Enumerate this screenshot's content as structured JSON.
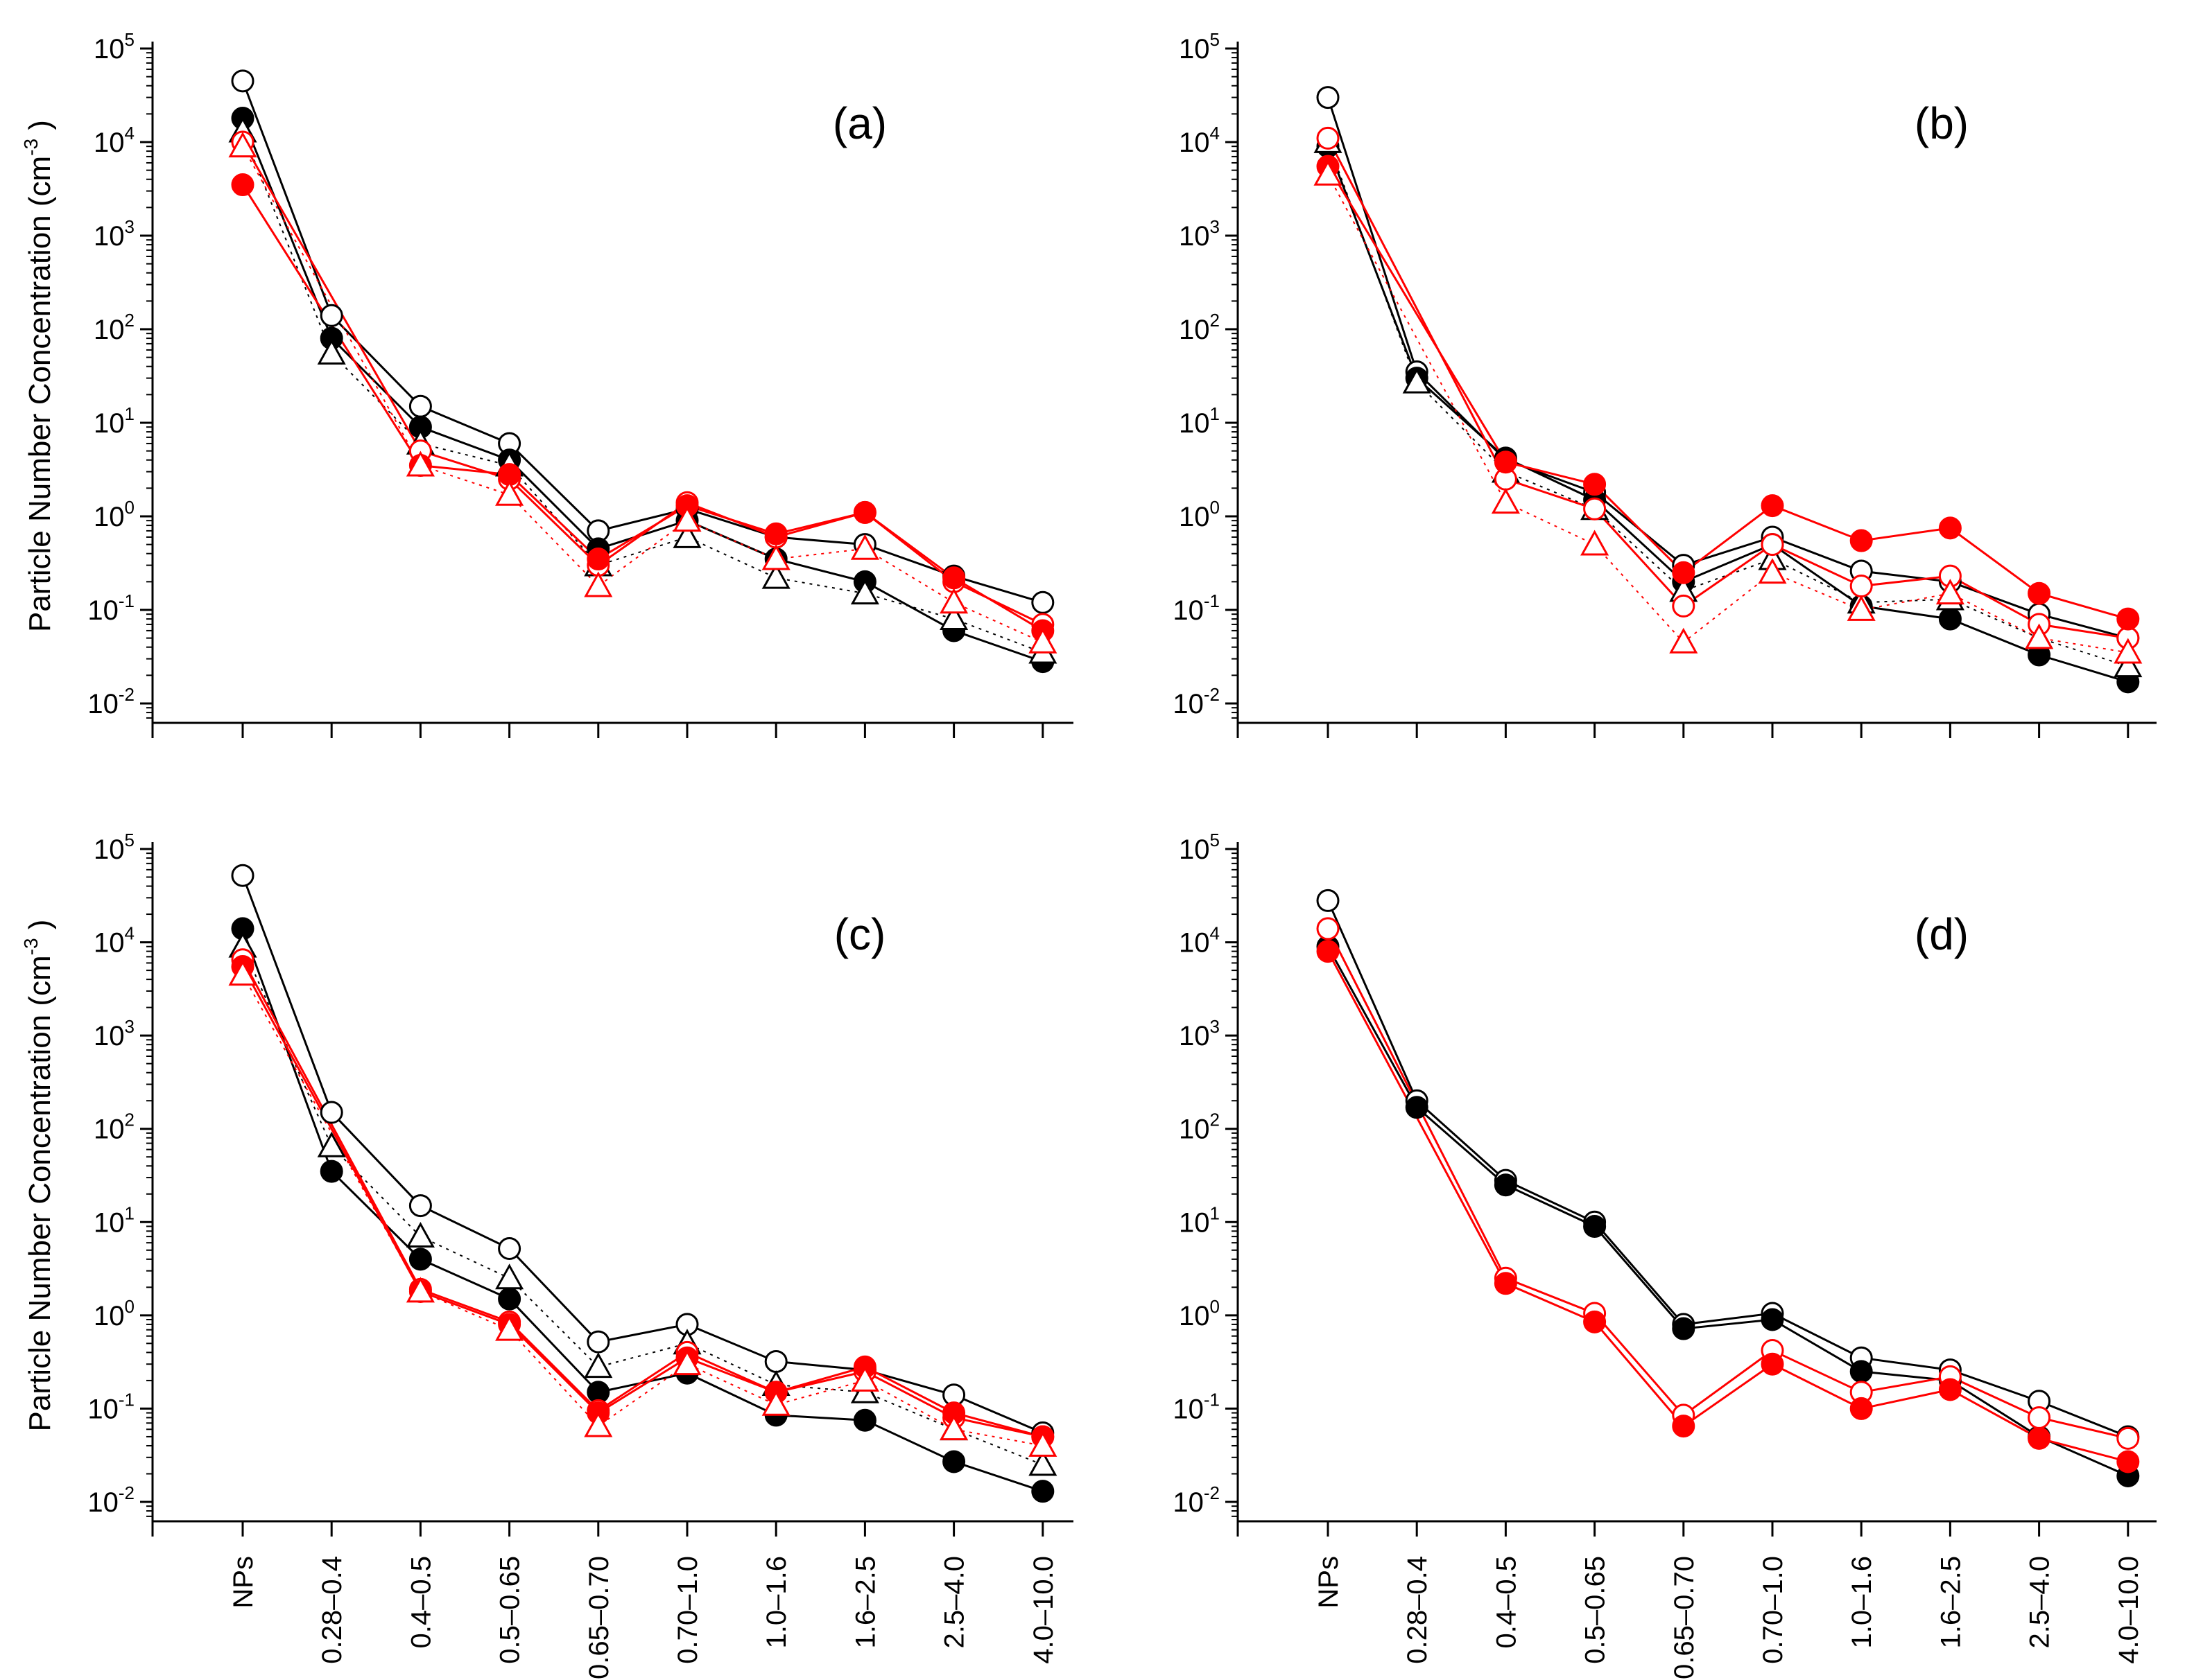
{
  "chart_data": [
    {
      "type": "line",
      "title": "(a)",
      "ylabel": "Particle Number Concentration (cm",
      "ylabel_exp": "-3",
      "yscale": "log",
      "ylim": [
        0.005,
        100000
      ],
      "categories": [
        "NPs",
        "0.28–0.4",
        "0.4–0.5",
        "0.5–0.65",
        "0.65–0.70",
        "0.70–1.0",
        "1.0–1.6",
        "1.6–2.5",
        "2.5–4.0",
        "4.0–10.0"
      ],
      "series": [
        {
          "name": "black open circle",
          "marker": "circle",
          "fill": "none",
          "color": "#000000",
          "linestyle": "solid",
          "values": [
            45000,
            140,
            15,
            6,
            0.7,
            1.2,
            0.6,
            0.5,
            0.23,
            0.12
          ]
        },
        {
          "name": "black filled circle",
          "marker": "circle",
          "fill": "#000000",
          "color": "#000000",
          "linestyle": "solid",
          "values": [
            18000,
            80,
            9,
            4,
            0.45,
            0.9,
            0.35,
            0.2,
            0.06,
            0.028
          ]
        },
        {
          "name": "black open triangle",
          "marker": "triangle",
          "fill": "none",
          "color": "#000000",
          "linestyle": "dotted",
          "values": [
            13000,
            55,
            6,
            3.5,
            0.3,
            0.6,
            0.22,
            0.15,
            0.08,
            0.035
          ]
        },
        {
          "name": "red open circle",
          "marker": "circle",
          "fill": "none",
          "color": "#ff0000",
          "linestyle": "solid",
          "values": [
            10000,
            null,
            5,
            2.5,
            0.3,
            1.4,
            0.6,
            1.1,
            0.2,
            0.07
          ]
        },
        {
          "name": "red filled circle",
          "marker": "circle",
          "fill": "#ff0000",
          "color": "#ff0000",
          "linestyle": "solid",
          "values": [
            3500,
            null,
            3.5,
            2.8,
            0.35,
            1.3,
            0.65,
            1.1,
            0.22,
            0.06
          ]
        },
        {
          "name": "red open triangle",
          "marker": "triangle",
          "fill": "none",
          "color": "#ff0000",
          "linestyle": "dotted",
          "values": [
            9000,
            null,
            3.5,
            1.7,
            0.18,
            0.9,
            0.35,
            0.45,
            0.12,
            0.045
          ]
        }
      ]
    },
    {
      "type": "line",
      "title": "(b)",
      "ylabel": "",
      "yscale": "log",
      "ylim": [
        0.005,
        100000
      ],
      "categories": [
        "NPs",
        "0.28–0.4",
        "0.4–0.5",
        "0.5–0.65",
        "0.65–0.70",
        "0.70–1.0",
        "1.0–1.6",
        "1.6–2.5",
        "2.5–4.0",
        "4.0–10.0"
      ],
      "series": [
        {
          "name": "black open circle",
          "marker": "circle",
          "fill": "none",
          "color": "#000000",
          "linestyle": "solid",
          "values": [
            30000,
            35,
            4,
            1.8,
            0.3,
            0.6,
            0.26,
            0.2,
            0.09,
            0.05
          ]
        },
        {
          "name": "black filled circle",
          "marker": "circle",
          "fill": "#000000",
          "color": "#000000",
          "linestyle": "solid",
          "values": [
            9000,
            30,
            4.2,
            1.5,
            0.2,
            0.5,
            0.11,
            0.08,
            0.033,
            0.017
          ]
        },
        {
          "name": "black open triangle",
          "marker": "triangle",
          "fill": "none",
          "color": "#000000",
          "linestyle": "dotted",
          "values": [
            10000,
            27,
            3,
            1.2,
            0.16,
            0.35,
            0.12,
            0.13,
            0.05,
            0.025
          ]
        },
        {
          "name": "red open circle",
          "marker": "circle",
          "fill": "none",
          "color": "#ff0000",
          "linestyle": "solid",
          "values": [
            11000,
            null,
            2.5,
            1.2,
            0.11,
            0.5,
            0.18,
            0.23,
            0.07,
            0.05
          ]
        },
        {
          "name": "red filled circle",
          "marker": "circle",
          "fill": "#ff0000",
          "color": "#ff0000",
          "linestyle": "solid",
          "values": [
            5500,
            null,
            3.8,
            2.2,
            0.25,
            1.3,
            0.55,
            0.75,
            0.15,
            0.08
          ]
        },
        {
          "name": "red open triangle",
          "marker": "triangle",
          "fill": "none",
          "color": "#ff0000",
          "linestyle": "dotted",
          "values": [
            4500,
            null,
            1.4,
            0.5,
            0.045,
            0.25,
            0.1,
            0.15,
            0.05,
            0.035
          ]
        }
      ]
    },
    {
      "type": "line",
      "title": "(c)",
      "ylabel": "Particle Number Concentration (cm",
      "ylabel_exp": "-3",
      "yscale": "log",
      "ylim": [
        0.005,
        100000
      ],
      "categories": [
        "NPs",
        "0.28–0.4",
        "0.4–0.5",
        "0.5–0.65",
        "0.65–0.70",
        "0.70–1.0",
        "1.0–1.6",
        "1.6–2.5",
        "2.5–4.0",
        "4.0–10.0"
      ],
      "series": [
        {
          "name": "black open circle",
          "marker": "circle",
          "fill": "none",
          "color": "#000000",
          "linestyle": "solid",
          "values": [
            52000,
            150,
            15,
            5.2,
            0.52,
            0.8,
            0.32,
            0.26,
            0.14,
            0.055
          ]
        },
        {
          "name": "black filled circle",
          "marker": "circle",
          "fill": "#000000",
          "color": "#000000",
          "linestyle": "solid",
          "values": [
            14000,
            35,
            4,
            1.5,
            0.15,
            0.24,
            0.085,
            0.075,
            0.027,
            0.013
          ]
        },
        {
          "name": "black open triangle",
          "marker": "triangle",
          "fill": "none",
          "color": "#000000",
          "linestyle": "dotted",
          "values": [
            9000,
            65,
            7,
            2.5,
            0.28,
            0.5,
            0.18,
            0.15,
            0.06,
            0.025
          ]
        },
        {
          "name": "red open circle",
          "marker": "circle",
          "fill": "none",
          "color": "#ff0000",
          "linestyle": "solid",
          "values": [
            6500,
            null,
            1.9,
            0.85,
            0.095,
            0.4,
            0.15,
            0.25,
            0.08,
            0.05
          ]
        },
        {
          "name": "red filled circle",
          "marker": "circle",
          "fill": "#ff0000",
          "color": "#ff0000",
          "linestyle": "solid",
          "values": [
            5500,
            null,
            1.8,
            0.8,
            0.09,
            0.35,
            0.15,
            0.28,
            0.09,
            0.05
          ]
        },
        {
          "name": "red open triangle",
          "marker": "triangle",
          "fill": "none",
          "color": "#ff0000",
          "linestyle": "dotted",
          "values": [
            4500,
            null,
            1.8,
            0.7,
            0.065,
            0.3,
            0.11,
            0.2,
            0.06,
            0.04
          ]
        }
      ]
    },
    {
      "type": "line",
      "title": "(d)",
      "ylabel": "",
      "yscale": "log",
      "ylim": [
        0.005,
        100000
      ],
      "categories": [
        "NPs",
        "0.28–0.4",
        "0.4–0.5",
        "0.5–0.65",
        "0.65–0.70",
        "0.70–1.0",
        "1.0–1.6",
        "1.6–2.5",
        "2.5–4.0",
        "4.0–10.0"
      ],
      "series": [
        {
          "name": "black open circle",
          "marker": "circle",
          "fill": "none",
          "color": "#000000",
          "linestyle": "solid",
          "values": [
            28000,
            200,
            28,
            10,
            0.8,
            1.05,
            0.35,
            0.26,
            0.12,
            0.05
          ]
        },
        {
          "name": "black filled circle",
          "marker": "circle",
          "fill": "#000000",
          "color": "#000000",
          "linestyle": "solid",
          "values": [
            9000,
            170,
            25,
            9,
            0.72,
            0.9,
            0.25,
            0.2,
            0.05,
            0.019
          ]
        },
        {
          "name": "red open circle",
          "marker": "circle",
          "fill": "none",
          "color": "#ff0000",
          "linestyle": "solid",
          "values": [
            14000,
            null,
            2.5,
            1.05,
            0.085,
            0.42,
            0.15,
            0.22,
            0.08,
            0.048
          ]
        },
        {
          "name": "red filled circle",
          "marker": "circle",
          "fill": "#ff0000",
          "color": "#ff0000",
          "linestyle": "solid",
          "values": [
            8000,
            null,
            2.2,
            0.85,
            0.065,
            0.3,
            0.1,
            0.16,
            0.048,
            0.027
          ]
        }
      ]
    }
  ],
  "y_ticks": [
    {
      "base": "10",
      "exp": "5"
    },
    {
      "base": "10",
      "exp": "4"
    },
    {
      "base": "10",
      "exp": "3"
    },
    {
      "base": "10",
      "exp": "2"
    },
    {
      "base": "10",
      "exp": "1"
    },
    {
      "base": "10",
      "exp": "0"
    },
    {
      "base": "10",
      "exp": "-1"
    },
    {
      "base": "10",
      "exp": "-2"
    }
  ]
}
